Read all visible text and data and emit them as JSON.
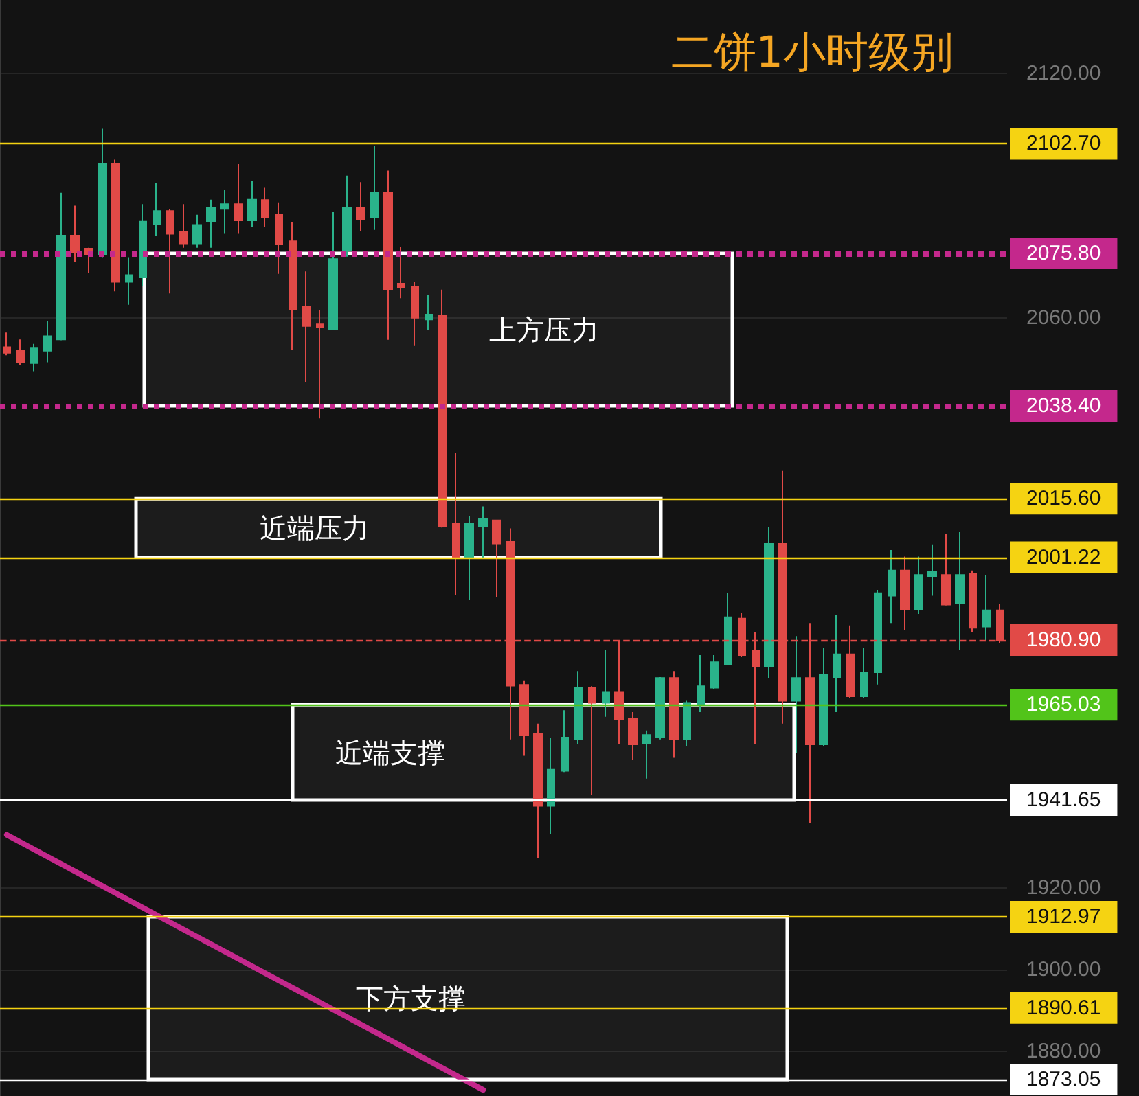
{
  "chart_data": {
    "type": "candlestick",
    "title": "二饼1小时级别",
    "categories": [
      null,
      null,
      null,
      null,
      null,
      null,
      null,
      null,
      null,
      null,
      null,
      null,
      null,
      null,
      null,
      null,
      null,
      null,
      null,
      null,
      null,
      null,
      null,
      null,
      null,
      null,
      null,
      null,
      null,
      null,
      null,
      null,
      null,
      null,
      null,
      null,
      null,
      null,
      null,
      null,
      null,
      null,
      null,
      null,
      null,
      null,
      null,
      null,
      null,
      null,
      null,
      null,
      null,
      null,
      null,
      null,
      null,
      null,
      null,
      null,
      null,
      null,
      null,
      null,
      null,
      null,
      null,
      null,
      null,
      null,
      null,
      null,
      null,
      null
    ],
    "ohlc": [
      [
        2052.8,
        2056.4,
        2050.8,
        2051.4
      ],
      [
        2051.9,
        2054.7,
        2048.5,
        2049.1
      ],
      [
        2048.9,
        2053.6,
        2046.9,
        2052.5
      ],
      [
        2051.9,
        2059.2,
        2049.1,
        2055.5
      ],
      [
        2054.7,
        2090.7,
        2054.5,
        2080.2
      ],
      [
        2080.2,
        2087.5,
        2073.8,
        2076.1
      ],
      [
        2077,
        2077.2,
        2071,
        2075.5
      ],
      [
        2075.5,
        2106.4,
        2074.9,
        2097.8
      ],
      [
        2097.8,
        2098.8,
        2066.5,
        2068.8
      ],
      [
        2068.8,
        2074.9,
        2063.2,
        2070.5
      ],
      [
        2069.9,
        2087.9,
        2067.7,
        2083.6
      ],
      [
        2083,
        2093,
        2080,
        2086.2
      ],
      [
        2086.2,
        2086.7,
        2066,
        2080.6
      ],
      [
        2081.1,
        2087.9,
        2077.2,
        2078.1
      ],
      [
        2078.1,
        2085.3,
        2077.2,
        2082.8
      ],
      [
        2083.6,
        2089,
        2077.2,
        2087
      ],
      [
        2086.7,
        2091.3,
        2080.6,
        2087.9
      ],
      [
        2087.9,
        2097.7,
        2080.6,
        2083.9
      ],
      [
        2083.9,
        2093.5,
        2082.3,
        2089
      ],
      [
        2088.9,
        2091.9,
        2082.2,
        2084.6
      ],
      [
        2085.3,
        2088.3,
        2070.8,
        2078
      ],
      [
        2078.8,
        2083.5,
        2052.2,
        2062.1
      ],
      [
        2062.7,
        2071.4,
        2044.3,
        2058
      ],
      [
        2058.4,
        2062,
        2035.3,
        2057.6
      ],
      [
        2057.2,
        2085.9,
        2057,
        2074.4
      ],
      [
        2076.5,
        2094.9,
        2075,
        2087.1
      ],
      [
        2087.1,
        2093.3,
        2081.3,
        2084.1
      ],
      [
        2084.6,
        2102.1,
        2081.6,
        2090.7
      ],
      [
        2090.7,
        2096.1,
        2054.6,
        2066.9
      ],
      [
        2068.4,
        2077.4,
        2064.8,
        2067.5
      ],
      [
        2067.6,
        2068.8,
        2053.1,
        2060
      ],
      [
        2059.6,
        2065.6,
        2057,
        2060.8
      ],
      [
        2060.6,
        2066.9,
        2008.5,
        2008.8
      ],
      [
        2009.4,
        2026.9,
        1992,
        2001
      ],
      [
        2001,
        2011.3,
        1990.8,
        2009.4
      ],
      [
        2008.9,
        2013.7,
        2001,
        2010.7
      ],
      [
        2010.3,
        2010.3,
        1991.4,
        2004.6
      ],
      [
        2005,
        2008.3,
        1956.5,
        1969.7
      ],
      [
        1969.9,
        1971,
        1952.5,
        1957.5
      ],
      [
        1957.9,
        1960.4,
        1927.3,
        1940.2
      ],
      [
        1940.2,
        1957,
        1933.4,
        1949.1
      ],
      [
        1948.8,
        1963.7,
        1948.5,
        1957
      ],
      [
        1956.5,
        1973.3,
        1955.3,
        1969.2
      ],
      [
        1969.2,
        1969.6,
        1943,
        1965.5
      ],
      [
        1965.5,
        1978.4,
        1962.1,
        1968.2
      ],
      [
        1968.2,
        1980.6,
        1955.3,
        1961.5
      ],
      [
        1961.7,
        1963.2,
        1951.4,
        1955.3
      ],
      [
        1955.6,
        1958.7,
        1946.9,
        1957.6
      ],
      [
        1957,
        1971.8,
        1956.5,
        1971.6
      ],
      [
        1971.6,
        1973.3,
        1952,
        1956.5
      ],
      [
        1956.5,
        1966,
        1954.8,
        1965.5
      ],
      [
        1964.9,
        1977.2,
        1963.2,
        1969.6
      ],
      [
        1969.2,
        1977.2,
        1968.8,
        1975.5
      ],
      [
        1975,
        1992.4,
        1974.9,
        1986.5
      ],
      [
        1986.2,
        1987.6,
        1976.7,
        1977.2
      ],
      [
        1978.4,
        1982.8,
        1955.3,
        1974.4
      ],
      [
        1974.4,
        2008.7,
        1971.6,
        2004.7
      ],
      [
        2004.7,
        2022.4,
        1960.4,
        1966
      ],
      [
        1966,
        1981.9,
        1953.1,
        1971.6
      ],
      [
        1971.6,
        1985.1,
        1935.9,
        1955.3
      ],
      [
        1955.3,
        1978.9,
        1954.8,
        1972.5
      ],
      [
        1971.8,
        1987.1,
        1963.2,
        1977.4
      ],
      [
        1977.4,
        1984.5,
        1966.6,
        1967.1
      ],
      [
        1967.1,
        1978.9,
        1966.6,
        1973
      ],
      [
        1973,
        1993.2,
        1970,
        1992.4
      ],
      [
        1991.8,
        2003,
        1985.1,
        1998
      ],
      [
        1998,
        2001.4,
        1983.4,
        1988.5
      ],
      [
        1988.5,
        2001.4,
        1987.3,
        1996.9
      ],
      [
        1996.6,
        2004.4,
        1991.8,
        1997.7
      ],
      [
        1996.9,
        2007,
        1989.4,
        1989.6
      ],
      [
        1989.9,
        2007.5,
        1978.4,
        1996.9
      ],
      [
        1997.1,
        1998,
        1982.8,
        1983.9
      ],
      [
        1984.2,
        1996.9,
        1980.8,
        1988.2
      ],
      [
        1988.2,
        1989.8,
        1980.1,
        1980.9
      ]
    ],
    "colors": [
      "#e14a47",
      "#e14a47",
      "#2ab38b",
      "#2ab38b",
      "#2ab38b",
      "#e14a47",
      "#e14a47",
      "#2ab38b",
      "#e14a47",
      "#2ab38b",
      "#2ab38b",
      "#2ab38b",
      "#e14a47",
      "#e14a47",
      "#2ab38b",
      "#2ab38b",
      "#2ab38b",
      "#e14a47",
      "#2ab38b",
      "#e14a47",
      "#e14a47",
      "#e14a47",
      "#e14a47",
      "#e14a47",
      "#2ab38b",
      "#2ab38b",
      "#e14a47",
      "#2ab38b",
      "#e14a47",
      "#e14a47",
      "#e14a47",
      "#2ab38b",
      "#e14a47",
      "#e14a47",
      "#2ab38b",
      "#2ab38b",
      "#e14a47",
      "#e14a47",
      "#e14a47",
      "#e14a47",
      "#2ab38b",
      "#2ab38b",
      "#2ab38b",
      "#e14a47",
      "#2ab38b",
      "#e14a47",
      "#e14a47",
      "#2ab38b",
      "#2ab38b",
      "#e14a47",
      "#2ab38b",
      "#2ab38b",
      "#2ab38b",
      "#2ab38b",
      "#e14a47",
      "#e14a47",
      "#2ab38b",
      "#e14a47",
      "#2ab38b",
      "#e14a47",
      "#2ab38b",
      "#2ab38b",
      "#e14a47",
      "#2ab38b",
      "#2ab38b",
      "#2ab38b",
      "#e14a47",
      "#2ab38b",
      "#2ab38b",
      "#e14a47",
      "#2ab38b",
      "#e14a47",
      "#2ab38b",
      "#e14a47"
    ],
    "series": [
      {
        "type": "line",
        "color": "#c4288c",
        "values": [
          1933.1,
          null,
          null,
          null,
          null,
          null,
          null,
          null,
          null,
          null,
          null,
          null,
          null,
          null,
          null,
          null,
          null,
          null,
          null,
          null,
          null,
          null,
          null,
          null,
          null,
          null,
          null,
          null,
          null,
          null,
          null,
          null,
          null,
          null,
          null,
          1870.5,
          null,
          null,
          null,
          null,
          null,
          null,
          null,
          null,
          null,
          null,
          null,
          null,
          null,
          null,
          null,
          null,
          null,
          null,
          null,
          null,
          null,
          null,
          null,
          null,
          null,
          null,
          null,
          null,
          null,
          null,
          null,
          null,
          null,
          null,
          null,
          null,
          null,
          null
        ]
      }
    ],
    "ylim": [
      1869,
      2138
    ],
    "yticks": [
      {
        "value": 1880,
        "label": "1880.00"
      },
      {
        "value": 1900,
        "label": "1900.00"
      },
      {
        "value": 1920,
        "label": "1920.00"
      },
      {
        "value": 2060,
        "label": "2060.00"
      },
      {
        "value": 2120,
        "label": "2120.00"
      }
    ],
    "grid": "y",
    "tick_labels": "y",
    "ref_lines": [
      {
        "axis": "y",
        "value": 2102.7,
        "label": "2102.70",
        "color": "#f5d312",
        "line_style": "solid"
      },
      {
        "axis": "y",
        "value": 2075.8,
        "label": "2075.80",
        "color": "#c4288c",
        "line_style": "dotted"
      },
      {
        "axis": "y",
        "value": 2038.4,
        "label": "2038.40",
        "color": "#c4288c",
        "line_style": "dotted"
      },
      {
        "axis": "y",
        "value": 2015.6,
        "label": "2015.60",
        "color": "#f5d312",
        "line_style": "solid"
      },
      {
        "axis": "y",
        "value": 2001.22,
        "label": "2001.22",
        "color": "#f5d312",
        "line_style": "solid"
      },
      {
        "axis": "y",
        "value": 1980.9,
        "label": "1980.90",
        "color": "#e14a47",
        "line_style": "dashed"
      },
      {
        "axis": "y",
        "value": 1965.03,
        "label": "1965.03",
        "color": "#52c41a",
        "line_style": "solid"
      },
      {
        "axis": "y",
        "value": 1941.65,
        "label": "1941.65",
        "color": "#ffffff",
        "line_style": "solid"
      },
      {
        "axis": "y",
        "value": 1912.97,
        "label": "1912.97",
        "color": "#f5d312",
        "line_style": "solid"
      },
      {
        "axis": "y",
        "value": 1890.61,
        "label": "1890.61",
        "color": "#f5d312",
        "line_style": "solid"
      },
      {
        "axis": "y",
        "value": 1873.05,
        "label": "1873.05",
        "color": "#ffffff",
        "line_style": "solid"
      }
    ],
    "bands": [
      {
        "axis": "y",
        "from": 2038.4,
        "to": 2075.8,
        "label": "上方压力",
        "color": "#ffffff"
      },
      {
        "axis": "y",
        "from": 2001.22,
        "to": 2015.6,
        "label": "近端压力",
        "color": "#ffffff"
      },
      {
        "axis": "y",
        "from": 1941.65,
        "to": 1965.03,
        "label": "近端支撑",
        "color": "#ffffff"
      },
      {
        "axis": "y",
        "from": 1873.05,
        "to": 1912.97,
        "label": "下方支撑",
        "color": "#ffffff"
      }
    ]
  }
}
